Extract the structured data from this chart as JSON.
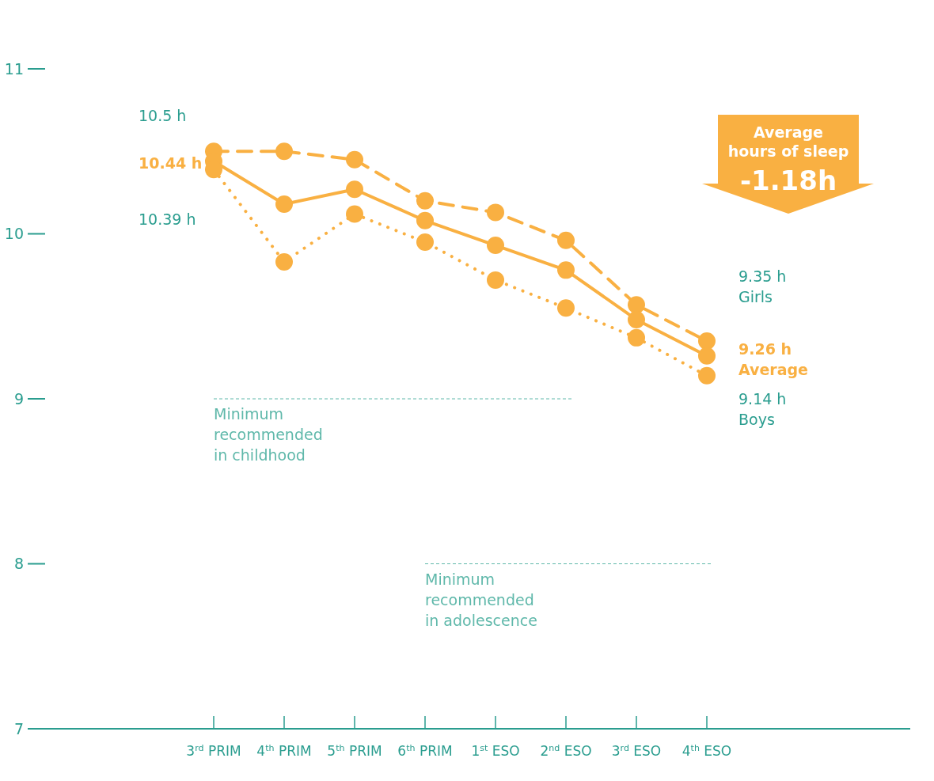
{
  "chart_data": {
    "type": "line",
    "categories": [
      "3$^{rd}$ PRIM",
      "4$^{th}$ PRIM",
      "5$^{th}$ PRIM",
      "6$^{th}$ PRIM",
      "1$^{st}$ ESO",
      "2$^{nd}$ ESO",
      "3$^{rd}$ ESO",
      "4$^{th}$ ESO"
    ],
    "series": [
      {
        "name": "Girls",
        "color": "#f9b042",
        "line_style": "dashed",
        "values": [
          10.5,
          10.5,
          10.45,
          10.2,
          10.13,
          9.96,
          9.57,
          9.35
        ]
      },
      {
        "name": "Average",
        "color": "#f9b042",
        "line_style": "solid",
        "values": [
          10.44,
          10.18,
          10.27,
          10.08,
          9.93,
          9.78,
          9.48,
          9.26
        ]
      },
      {
        "name": "Boys",
        "color": "#f9b042",
        "line_style": "dotted",
        "values": [
          10.39,
          9.83,
          10.12,
          9.95,
          9.72,
          9.55,
          9.37,
          9.14
        ]
      }
    ],
    "ylim": [
      7,
      11
    ],
    "yticks": [
      7,
      8,
      9,
      10,
      11
    ],
    "grid": false,
    "legend": "right",
    "marker": "circle",
    "ref_lines": [
      {
        "axis": "y",
        "value": 9,
        "label": "Minimum recommended in childhood",
        "color": "#5fb8aa",
        "line_style": "dashed"
      },
      {
        "axis": "y",
        "value": 8,
        "label": "Minimum recommended in adolescence",
        "color": "#5fb8aa",
        "line_style": "dashed"
      }
    ],
    "annotations": [
      {
        "text": "10.5 h",
        "x": "3$^{rd}$ PRIM",
        "y": 10.5
      },
      {
        "text": "10.44 h",
        "x": "3$^{rd}$ PRIM",
        "y": 10.44
      },
      {
        "text": "10.39 h",
        "x": "3$^{rd}$ PRIM",
        "y": 10.39
      },
      "9.35 h",
      "9.26 h",
      "9.14 h",
      "Average hours of sleep",
      "-1.18h"
    ]
  }
}
